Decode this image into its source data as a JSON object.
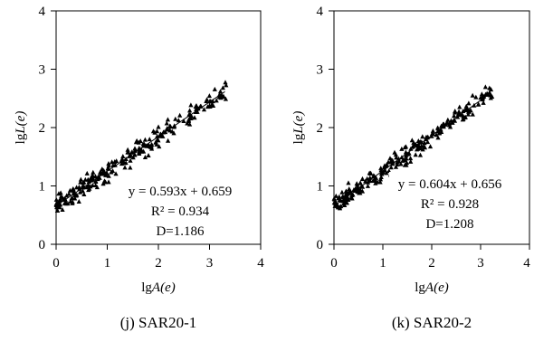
{
  "chart_data": [
    {
      "type": "scatter",
      "caption": "(j) SAR20-1",
      "xlabel_prefix": "lg",
      "xlabel_var": "A(e)",
      "ylabel_prefix": "lg",
      "ylabel_var": "L(e)",
      "xlim": [
        0,
        4
      ],
      "ylim": [
        0,
        4
      ],
      "xticks": [
        "0",
        "1",
        "2",
        "3",
        "4"
      ],
      "yticks": [
        "0",
        "1",
        "2",
        "3",
        "4"
      ],
      "grid": false,
      "marker": "triangle",
      "marker_color": "#000000",
      "fit": {
        "slope": 0.593,
        "intercept": 0.659,
        "x_range": [
          0,
          3.3
        ]
      },
      "annotations": [
        "y = 0.593x + 0.659",
        "R² = 0.934",
        "D=1.186"
      ],
      "point_x_range": [
        0,
        3.35
      ],
      "point_spread": 0.12,
      "point_count": 260
    },
    {
      "type": "scatter",
      "caption": "(k) SAR20-2",
      "xlabel_prefix": "lg",
      "xlabel_var": "A(e)",
      "ylabel_prefix": "lg",
      "ylabel_var": "L(e)",
      "xlim": [
        0,
        4
      ],
      "ylim": [
        0,
        4
      ],
      "xticks": [
        "0",
        "1",
        "2",
        "3",
        "4"
      ],
      "yticks": [
        "0",
        "1",
        "2",
        "3",
        "4"
      ],
      "grid": false,
      "marker": "triangle",
      "marker_color": "#000000",
      "fit": {
        "slope": 0.604,
        "intercept": 0.656,
        "x_range": [
          0,
          3.2
        ]
      },
      "annotations": [
        "y = 0.604x + 0.656",
        "R² = 0.928",
        "D=1.208"
      ],
      "point_x_range": [
        0,
        3.25
      ],
      "point_spread": 0.12,
      "point_count": 260
    }
  ]
}
